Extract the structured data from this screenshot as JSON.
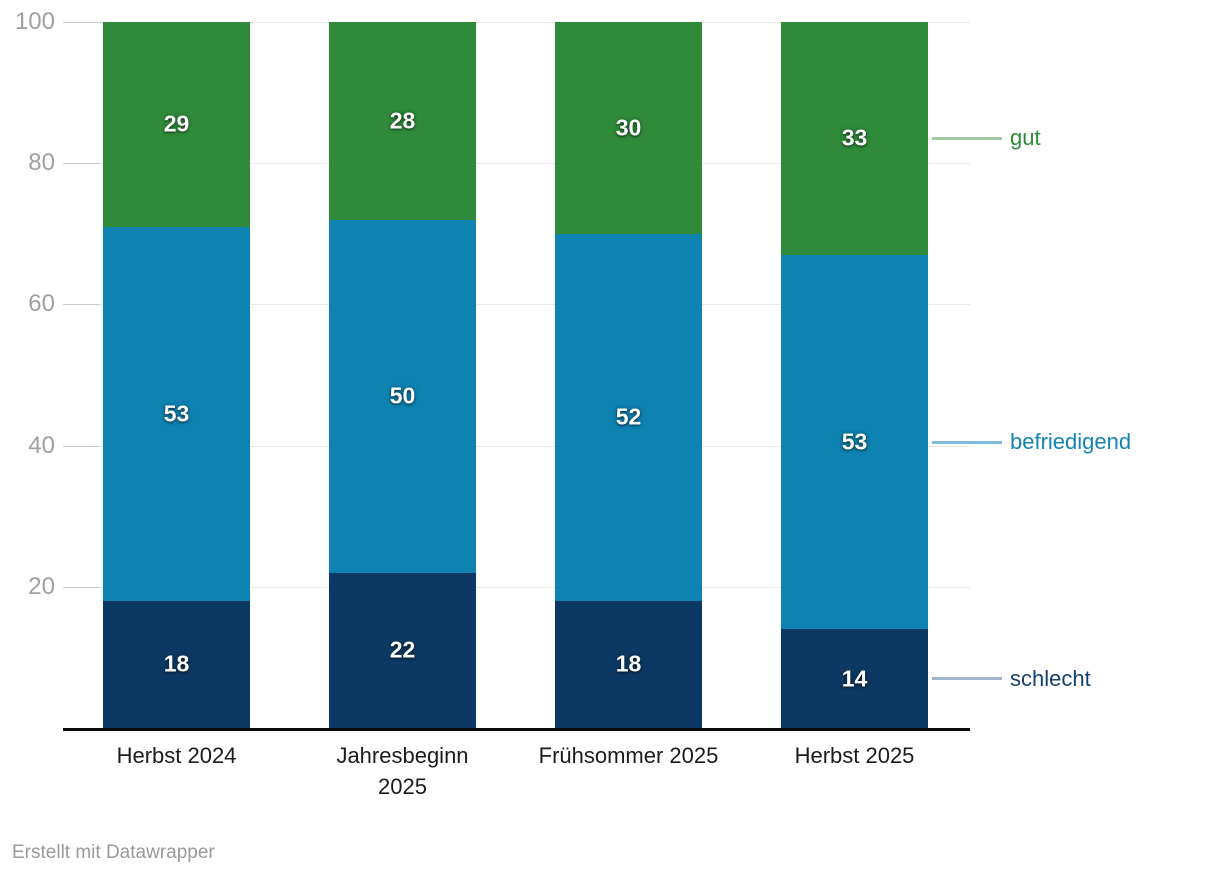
{
  "chart_data": {
    "type": "bar",
    "stacked": true,
    "title": "",
    "xlabel": "",
    "ylabel": "",
    "ylim": [
      0,
      100
    ],
    "yticks": [
      20,
      40,
      60,
      80,
      100
    ],
    "grid": true,
    "legend_position": "right-direct-labels",
    "categories": [
      "Herbst 2024",
      "Jahresbeginn\n2025",
      "Frühsommer 2025",
      "Herbst 2025"
    ],
    "series": [
      {
        "name": "schlecht",
        "values": [
          18,
          22,
          18,
          14
        ],
        "color": "#0c3963",
        "legend_text_color": "#17406e",
        "connector_color": "#a2b4ca"
      },
      {
        "name": "befriedigend",
        "values": [
          53,
          50,
          52,
          53
        ],
        "color": "#0e82b0",
        "legend_text_color": "#1583b4",
        "connector_color": "#7cbcdc"
      },
      {
        "name": "gut",
        "values": [
          29,
          28,
          30,
          33
        ],
        "color": "#2f8b3a",
        "legend_text_color": "#2e8b3a",
        "connector_color": "#a2c7a3"
      }
    ],
    "value_labels_shown": true
  },
  "footer": {
    "credit": "Erstellt mit Datawrapper"
  },
  "colors": {
    "gridline": "#e9e9e9",
    "tick": "#c9c9c9",
    "axis": "#0a0a0a",
    "y_label": "#a0a0a0",
    "x_label": "#1c1c1c",
    "value_label": "#ffffff",
    "credit": "#9a9a9a",
    "background": "#ffffff"
  }
}
